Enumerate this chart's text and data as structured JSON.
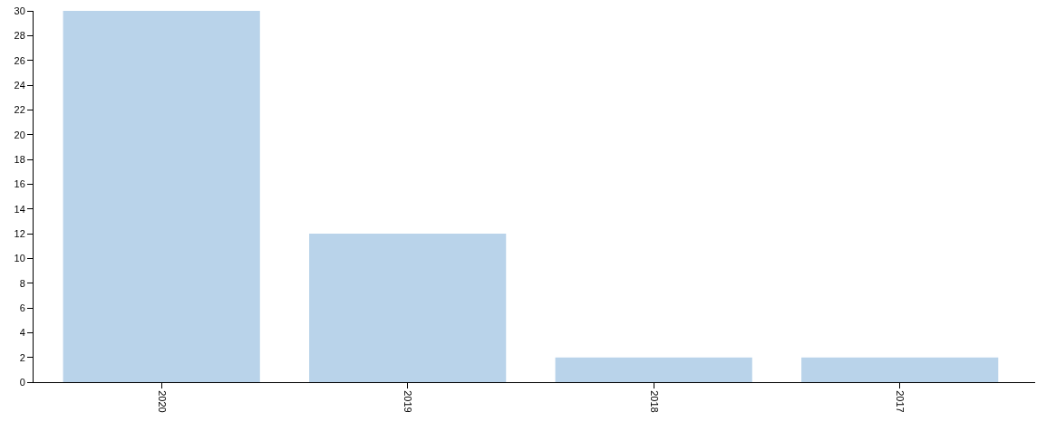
{
  "chart_data": {
    "type": "bar",
    "categories": [
      "2020",
      "2019",
      "2018",
      "2017"
    ],
    "values": [
      30,
      12,
      2,
      2
    ],
    "color": "#b9d3ea",
    "ylim": [
      0,
      30
    ],
    "yticks": [
      0,
      2,
      4,
      6,
      8,
      10,
      12,
      14,
      16,
      18,
      20,
      22,
      24,
      26,
      28,
      30
    ]
  }
}
